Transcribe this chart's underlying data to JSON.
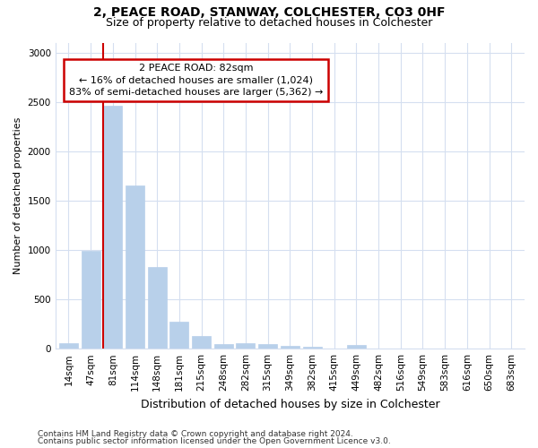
{
  "title1": "2, PEACE ROAD, STANWAY, COLCHESTER, CO3 0HF",
  "title2": "Size of property relative to detached houses in Colchester",
  "xlabel": "Distribution of detached houses by size in Colchester",
  "ylabel": "Number of detached properties",
  "categories": [
    "14sqm",
    "47sqm",
    "81sqm",
    "114sqm",
    "148sqm",
    "181sqm",
    "215sqm",
    "248sqm",
    "282sqm",
    "315sqm",
    "349sqm",
    "382sqm",
    "415sqm",
    "449sqm",
    "482sqm",
    "516sqm",
    "549sqm",
    "583sqm",
    "616sqm",
    "650sqm",
    "683sqm"
  ],
  "values": [
    55,
    990,
    2460,
    1650,
    830,
    270,
    130,
    50,
    55,
    50,
    30,
    20,
    0,
    35,
    0,
    0,
    0,
    0,
    0,
    0,
    0
  ],
  "bar_color": "#b8d0ea",
  "bar_edge_color": "#b8d0ea",
  "annotation_text_line1": "2 PEACE ROAD: 82sqm",
  "annotation_text_line2": "← 16% of detached houses are smaller (1,024)",
  "annotation_text_line3": "83% of semi-detached houses are larger (5,362) →",
  "annotation_box_facecolor": "#ffffff",
  "annotation_box_edgecolor": "#cc0000",
  "vline_color": "#cc0000",
  "vline_x_index": 2,
  "ylim": [
    0,
    3100
  ],
  "yticks": [
    0,
    500,
    1000,
    1500,
    2000,
    2500,
    3000
  ],
  "footnote1": "Contains HM Land Registry data © Crown copyright and database right 2024.",
  "footnote2": "Contains public sector information licensed under the Open Government Licence v3.0.",
  "bg_color": "#ffffff",
  "plot_bg_color": "#ffffff",
  "grid_color": "#d5dff0",
  "title1_fontsize": 10,
  "title2_fontsize": 9,
  "xlabel_fontsize": 9,
  "ylabel_fontsize": 8,
  "tick_fontsize": 7.5,
  "footnote_fontsize": 6.5,
  "ann_fontsize": 8
}
